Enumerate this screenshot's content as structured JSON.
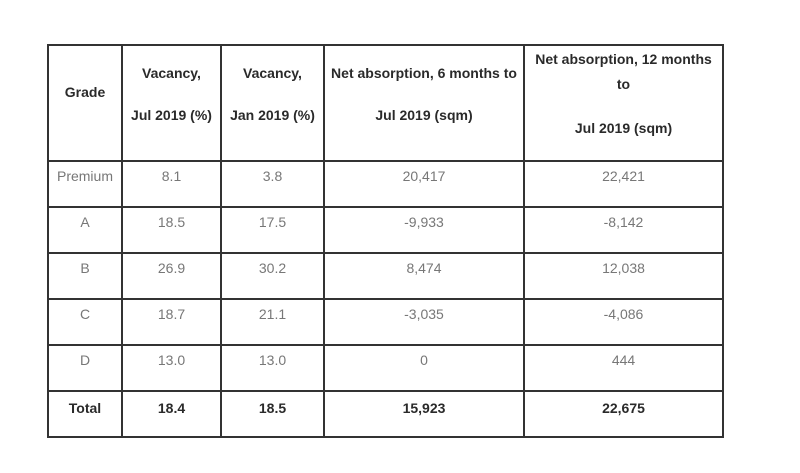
{
  "table": {
    "headers": {
      "grade": "Grade",
      "vacancy_jul_line1": "Vacancy,",
      "vacancy_jul_line2": "Jul 2019 (%)",
      "vacancy_jan_line1": "Vacancy,",
      "vacancy_jan_line2": "Jan 2019 (%)",
      "net6_line1": "Net absorption, 6 months to",
      "net6_line2": "Jul 2019 (sqm)",
      "net12_line1": "Net absorption, 12 months",
      "net12_line2": "to",
      "net12_line3": "Jul 2019 (sqm)"
    },
    "rows": [
      {
        "grade": "Premium",
        "vac_jul": "8.1",
        "vac_jan": "3.8",
        "net6": "20,417",
        "net12": "22,421"
      },
      {
        "grade": "A",
        "vac_jul": "18.5",
        "vac_jan": "17.5",
        "net6": "-9,933",
        "net12": "-8,142"
      },
      {
        "grade": "B",
        "vac_jul": "26.9",
        "vac_jan": "30.2",
        "net6": "8,474",
        "net12": "12,038"
      },
      {
        "grade": "C",
        "vac_jul": "18.7",
        "vac_jan": "21.1",
        "net6": "-3,035",
        "net12": "-4,086"
      },
      {
        "grade": "D",
        "vac_jul": "13.0",
        "vac_jan": "13.0",
        "net6": "0",
        "net12": "444"
      }
    ],
    "total": {
      "grade": "Total",
      "vac_jul": "18.4",
      "vac_jan": "18.5",
      "net6": "15,923",
      "net12": "22,675"
    }
  }
}
